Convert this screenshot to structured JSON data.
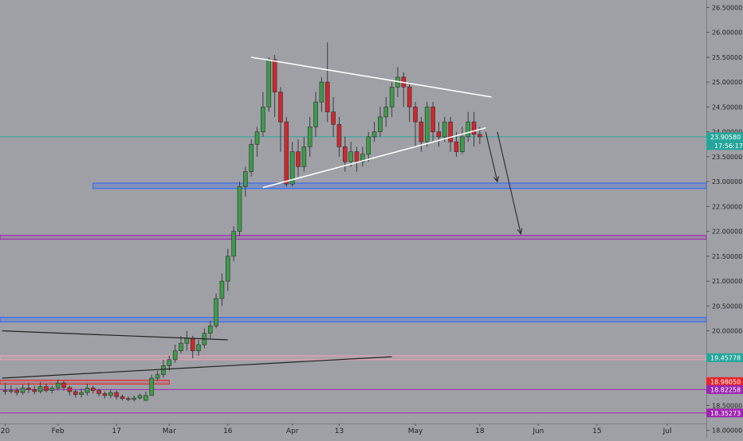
{
  "chart_data": {
    "type": "candlestick",
    "symbol_interval": "daily",
    "price_axis": {
      "range": [
        17.85,
        26.65
      ],
      "ticks": [
        "26.50000",
        "26.00000",
        "25.50000",
        "25.00000",
        "24.50000",
        "24.00000",
        "23.50000",
        "23.00000",
        "22.50000",
        "22.00000",
        "21.50000",
        "21.00000",
        "20.50000",
        "20.00000",
        "19.50000",
        "19.00000",
        "18.50000",
        "18.00000"
      ]
    },
    "time_axis": {
      "labels": [
        {
          "text": "20",
          "index": 0
        },
        {
          "text": "Feb",
          "index": 9
        },
        {
          "text": "17",
          "index": 19
        },
        {
          "text": "Mar",
          "index": 28
        },
        {
          "text": "16",
          "index": 38
        },
        {
          "text": "Apr",
          "index": 49
        },
        {
          "text": "13",
          "index": 57
        },
        {
          "text": "May",
          "index": 70
        },
        {
          "text": "18",
          "index": 81
        },
        {
          "text": "Jun",
          "index": 91
        },
        {
          "text": "15",
          "index": 101
        },
        {
          "text": "Jul",
          "index": 113
        }
      ]
    },
    "current_price": {
      "value": 23.9,
      "label": "23.90580",
      "countdown": "17:56:17",
      "color": "#26a69a"
    },
    "price_tags": [
      {
        "value": 19.46,
        "label": "19.45778",
        "color": "#26a69a"
      },
      {
        "value": 18.98,
        "label": "18.98050",
        "color": "#e5262b"
      },
      {
        "value": 18.82,
        "label": "18.82258",
        "color": "#9c27b0"
      },
      {
        "value": 18.35,
        "label": "18.35273",
        "color": "#9c27b0"
      }
    ],
    "zones": [
      {
        "from": 22.86,
        "to": 22.97,
        "start": 15,
        "color": "#2962ff"
      },
      {
        "from": 21.84,
        "to": 21.92,
        "start": -1,
        "color": "#9c27b0"
      },
      {
        "from": 20.18,
        "to": 20.27,
        "start": -1,
        "color": "#2962ff"
      },
      {
        "from": 19.42,
        "to": 19.5,
        "start": -1,
        "color": "#e8a3b8"
      },
      {
        "from": 18.93,
        "to": 19.01,
        "start": -1,
        "end": 28,
        "color": "#e5262b"
      }
    ],
    "hlines": [
      {
        "value": 18.82,
        "color": "#9c27b0"
      },
      {
        "value": 18.35,
        "color": "#9c27b0"
      },
      {
        "value": 23.9,
        "color": "#26a69a"
      }
    ],
    "trendlines": [
      {
        "from": [
          42,
          25.5
        ],
        "to": [
          83,
          24.7
        ],
        "color": "#ffffff"
      },
      {
        "from": [
          44,
          22.88
        ],
        "to": [
          82,
          24.08
        ],
        "color": "#ffffff"
      },
      {
        "from": -0.5,
        "y1": 20.0,
        "to": 38,
        "y2": 19.82,
        "color": "#222222"
      },
      {
        "from": -0.5,
        "y1": 19.05,
        "to": 66,
        "y2": 19.48,
        "color": "#222222"
      }
    ],
    "arrows": [
      {
        "from": [
          82,
          24.0
        ],
        "to": [
          84,
          23.0
        ],
        "color": "#333333"
      },
      {
        "from": [
          84,
          24.0
        ],
        "to": [
          88,
          21.95
        ],
        "color": "#333333"
      }
    ],
    "candles": [
      [
        18.8,
        18.78,
        18.95,
        18.72
      ],
      [
        18.78,
        18.8,
        18.9,
        18.74
      ],
      [
        18.8,
        18.76,
        18.86,
        18.7
      ],
      [
        18.76,
        18.85,
        18.92,
        18.72
      ],
      [
        18.85,
        18.82,
        18.95,
        18.75
      ],
      [
        18.82,
        18.78,
        18.9,
        18.72
      ],
      [
        18.78,
        18.88,
        18.97,
        18.74
      ],
      [
        18.88,
        18.8,
        18.94,
        18.76
      ],
      [
        18.8,
        18.85,
        18.9,
        18.74
      ],
      [
        18.85,
        18.95,
        19.02,
        18.8
      ],
      [
        18.95,
        18.86,
        19.0,
        18.8
      ],
      [
        18.86,
        18.78,
        18.9,
        18.7
      ],
      [
        18.78,
        18.72,
        18.82,
        18.66
      ],
      [
        18.72,
        18.76,
        18.84,
        18.66
      ],
      [
        18.76,
        18.85,
        18.94,
        18.7
      ],
      [
        18.85,
        18.8,
        18.9,
        18.74
      ],
      [
        18.8,
        18.74,
        18.84,
        18.68
      ],
      [
        18.74,
        18.7,
        18.78,
        18.64
      ],
      [
        18.7,
        18.76,
        18.82,
        18.65
      ],
      [
        18.76,
        18.68,
        18.8,
        18.62
      ],
      [
        18.68,
        18.64,
        18.72,
        18.6
      ],
      [
        18.64,
        18.62,
        18.68,
        18.58
      ],
      [
        18.62,
        18.65,
        18.7,
        18.58
      ],
      [
        18.65,
        18.7,
        18.74,
        18.62
      ],
      [
        18.6,
        18.7,
        18.78,
        18.6
      ],
      [
        18.7,
        19.05,
        19.12,
        18.7
      ],
      [
        19.05,
        19.12,
        19.2,
        19.0
      ],
      [
        19.12,
        19.3,
        19.42,
        19.06
      ],
      [
        19.3,
        19.42,
        19.5,
        19.2
      ],
      [
        19.42,
        19.6,
        19.72,
        19.36
      ],
      [
        19.6,
        19.75,
        19.9,
        19.55
      ],
      [
        19.75,
        19.85,
        20.0,
        19.6
      ],
      [
        19.85,
        19.6,
        19.9,
        19.45
      ],
      [
        19.6,
        19.72,
        19.82,
        19.5
      ],
      [
        19.72,
        19.95,
        20.05,
        19.65
      ],
      [
        19.95,
        20.1,
        20.2,
        19.85
      ],
      [
        20.1,
        20.65,
        20.75,
        20.05
      ],
      [
        20.65,
        21.0,
        21.15,
        20.5
      ],
      [
        21.0,
        21.5,
        21.65,
        20.8
      ],
      [
        21.5,
        22.0,
        22.1,
        21.4
      ],
      [
        22.0,
        22.9,
        23.0,
        21.9
      ],
      [
        22.9,
        23.2,
        23.3,
        22.7
      ],
      [
        23.2,
        23.75,
        23.85,
        23.1
      ],
      [
        23.75,
        24.0,
        24.1,
        23.5
      ],
      [
        24.0,
        24.5,
        24.8,
        23.9
      ],
      [
        24.5,
        25.45,
        25.5,
        24.4
      ],
      [
        25.45,
        24.8,
        25.55,
        24.3
      ],
      [
        24.8,
        24.2,
        24.9,
        23.6
      ],
      [
        24.2,
        22.95,
        24.3,
        22.9
      ],
      [
        22.95,
        23.6,
        23.8,
        22.9
      ],
      [
        23.6,
        23.3,
        23.85,
        23.1
      ],
      [
        23.3,
        23.7,
        23.9,
        23.2
      ],
      [
        23.7,
        24.1,
        24.3,
        23.5
      ],
      [
        24.1,
        24.6,
        24.8,
        23.9
      ],
      [
        24.6,
        25.0,
        25.1,
        24.4
      ],
      [
        25.0,
        24.4,
        25.8,
        24.2
      ],
      [
        24.4,
        24.15,
        24.7,
        23.9
      ],
      [
        24.15,
        23.7,
        24.3,
        23.5
      ],
      [
        23.7,
        23.4,
        23.9,
        23.2
      ],
      [
        23.4,
        23.6,
        23.8,
        23.3
      ],
      [
        23.6,
        23.4,
        23.7,
        23.2
      ],
      [
        23.4,
        23.55,
        23.7,
        23.3
      ],
      [
        23.55,
        23.9,
        24.0,
        23.4
      ],
      [
        23.9,
        24.0,
        24.2,
        23.8
      ],
      [
        24.0,
        24.3,
        24.5,
        23.9
      ],
      [
        24.3,
        24.5,
        24.7,
        24.1
      ],
      [
        24.5,
        24.9,
        25.0,
        24.3
      ],
      [
        24.9,
        25.1,
        25.3,
        24.7
      ],
      [
        25.1,
        24.9,
        25.2,
        24.5
      ],
      [
        24.9,
        24.5,
        25.0,
        24.2
      ],
      [
        24.5,
        24.2,
        24.6,
        23.7
      ],
      [
        24.2,
        23.8,
        24.3,
        23.6
      ],
      [
        23.8,
        24.5,
        24.6,
        23.7
      ],
      [
        24.5,
        24.0,
        24.6,
        23.8
      ],
      [
        24.0,
        23.9,
        24.2,
        23.7
      ],
      [
        23.9,
        24.2,
        24.3,
        23.8
      ],
      [
        24.2,
        23.8,
        24.3,
        23.6
      ],
      [
        23.8,
        23.6,
        24.0,
        23.5
      ],
      [
        23.6,
        23.9,
        24.1,
        23.55
      ],
      [
        23.9,
        24.2,
        24.4,
        23.8
      ],
      [
        24.2,
        23.95,
        24.4,
        23.7
      ],
      [
        23.95,
        23.9,
        24.1,
        23.75
      ]
    ]
  }
}
